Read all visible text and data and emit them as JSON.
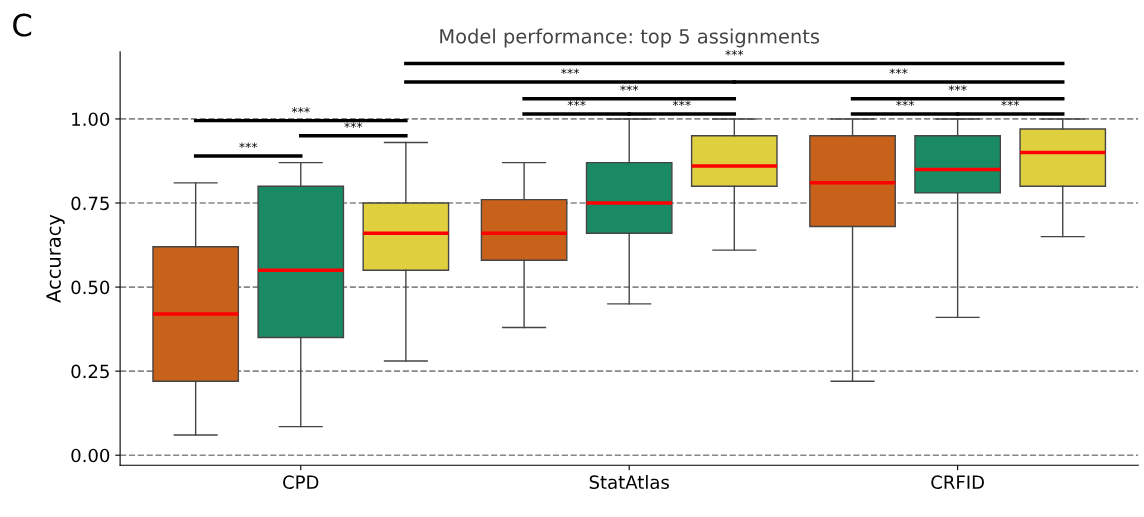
{
  "chart_data": {
    "type": "box",
    "title": "Model performance: top 5 assignments",
    "ylabel": "Accuracy",
    "categories": [
      "CPD",
      "StatAtlas",
      "CRFID"
    ],
    "series": [
      {
        "color": "#c8611a",
        "boxes": [
          {
            "low": 0.06,
            "q1": 0.22,
            "median": 0.42,
            "q3": 0.62,
            "high": 0.81
          },
          {
            "low": 0.38,
            "q1": 0.58,
            "median": 0.66,
            "q3": 0.76,
            "high": 0.87
          },
          {
            "low": 0.22,
            "q1": 0.68,
            "median": 0.81,
            "q3": 0.95,
            "high": 1.0
          }
        ]
      },
      {
        "color": "#1a8a64",
        "boxes": [
          {
            "low": 0.085,
            "q1": 0.35,
            "median": 0.55,
            "q3": 0.8,
            "high": 0.87
          },
          {
            "low": 0.45,
            "q1": 0.66,
            "median": 0.75,
            "q3": 0.87,
            "high": 1.0
          },
          {
            "low": 0.41,
            "q1": 0.78,
            "median": 0.85,
            "q3": 0.95,
            "high": 1.0
          }
        ]
      },
      {
        "color": "#e0d040",
        "boxes": [
          {
            "low": 0.28,
            "q1": 0.55,
            "median": 0.66,
            "q3": 0.75,
            "high": 0.93
          },
          {
            "low": 0.61,
            "q1": 0.8,
            "median": 0.86,
            "q3": 0.95,
            "high": 1.0
          },
          {
            "low": 0.65,
            "q1": 0.8,
            "median": 0.9,
            "q3": 0.97,
            "high": 1.0
          }
        ]
      }
    ],
    "ylim": [
      -0.03,
      1.2
    ],
    "yticks": [
      {
        "value": 0,
        "label": "0.00"
      },
      {
        "value": 0.25,
        "label": "0.25"
      },
      {
        "value": 0.5,
        "label": "0.50"
      },
      {
        "value": 0.75,
        "label": "0.75"
      },
      {
        "value": 1,
        "label": "1.00"
      }
    ],
    "grid": "y",
    "line_style": "dashed",
    "annotations": [
      "C",
      "***",
      "***",
      "***",
      "***",
      "***",
      "***",
      "***",
      "***",
      "***",
      "***",
      "***",
      "***"
    ]
  }
}
